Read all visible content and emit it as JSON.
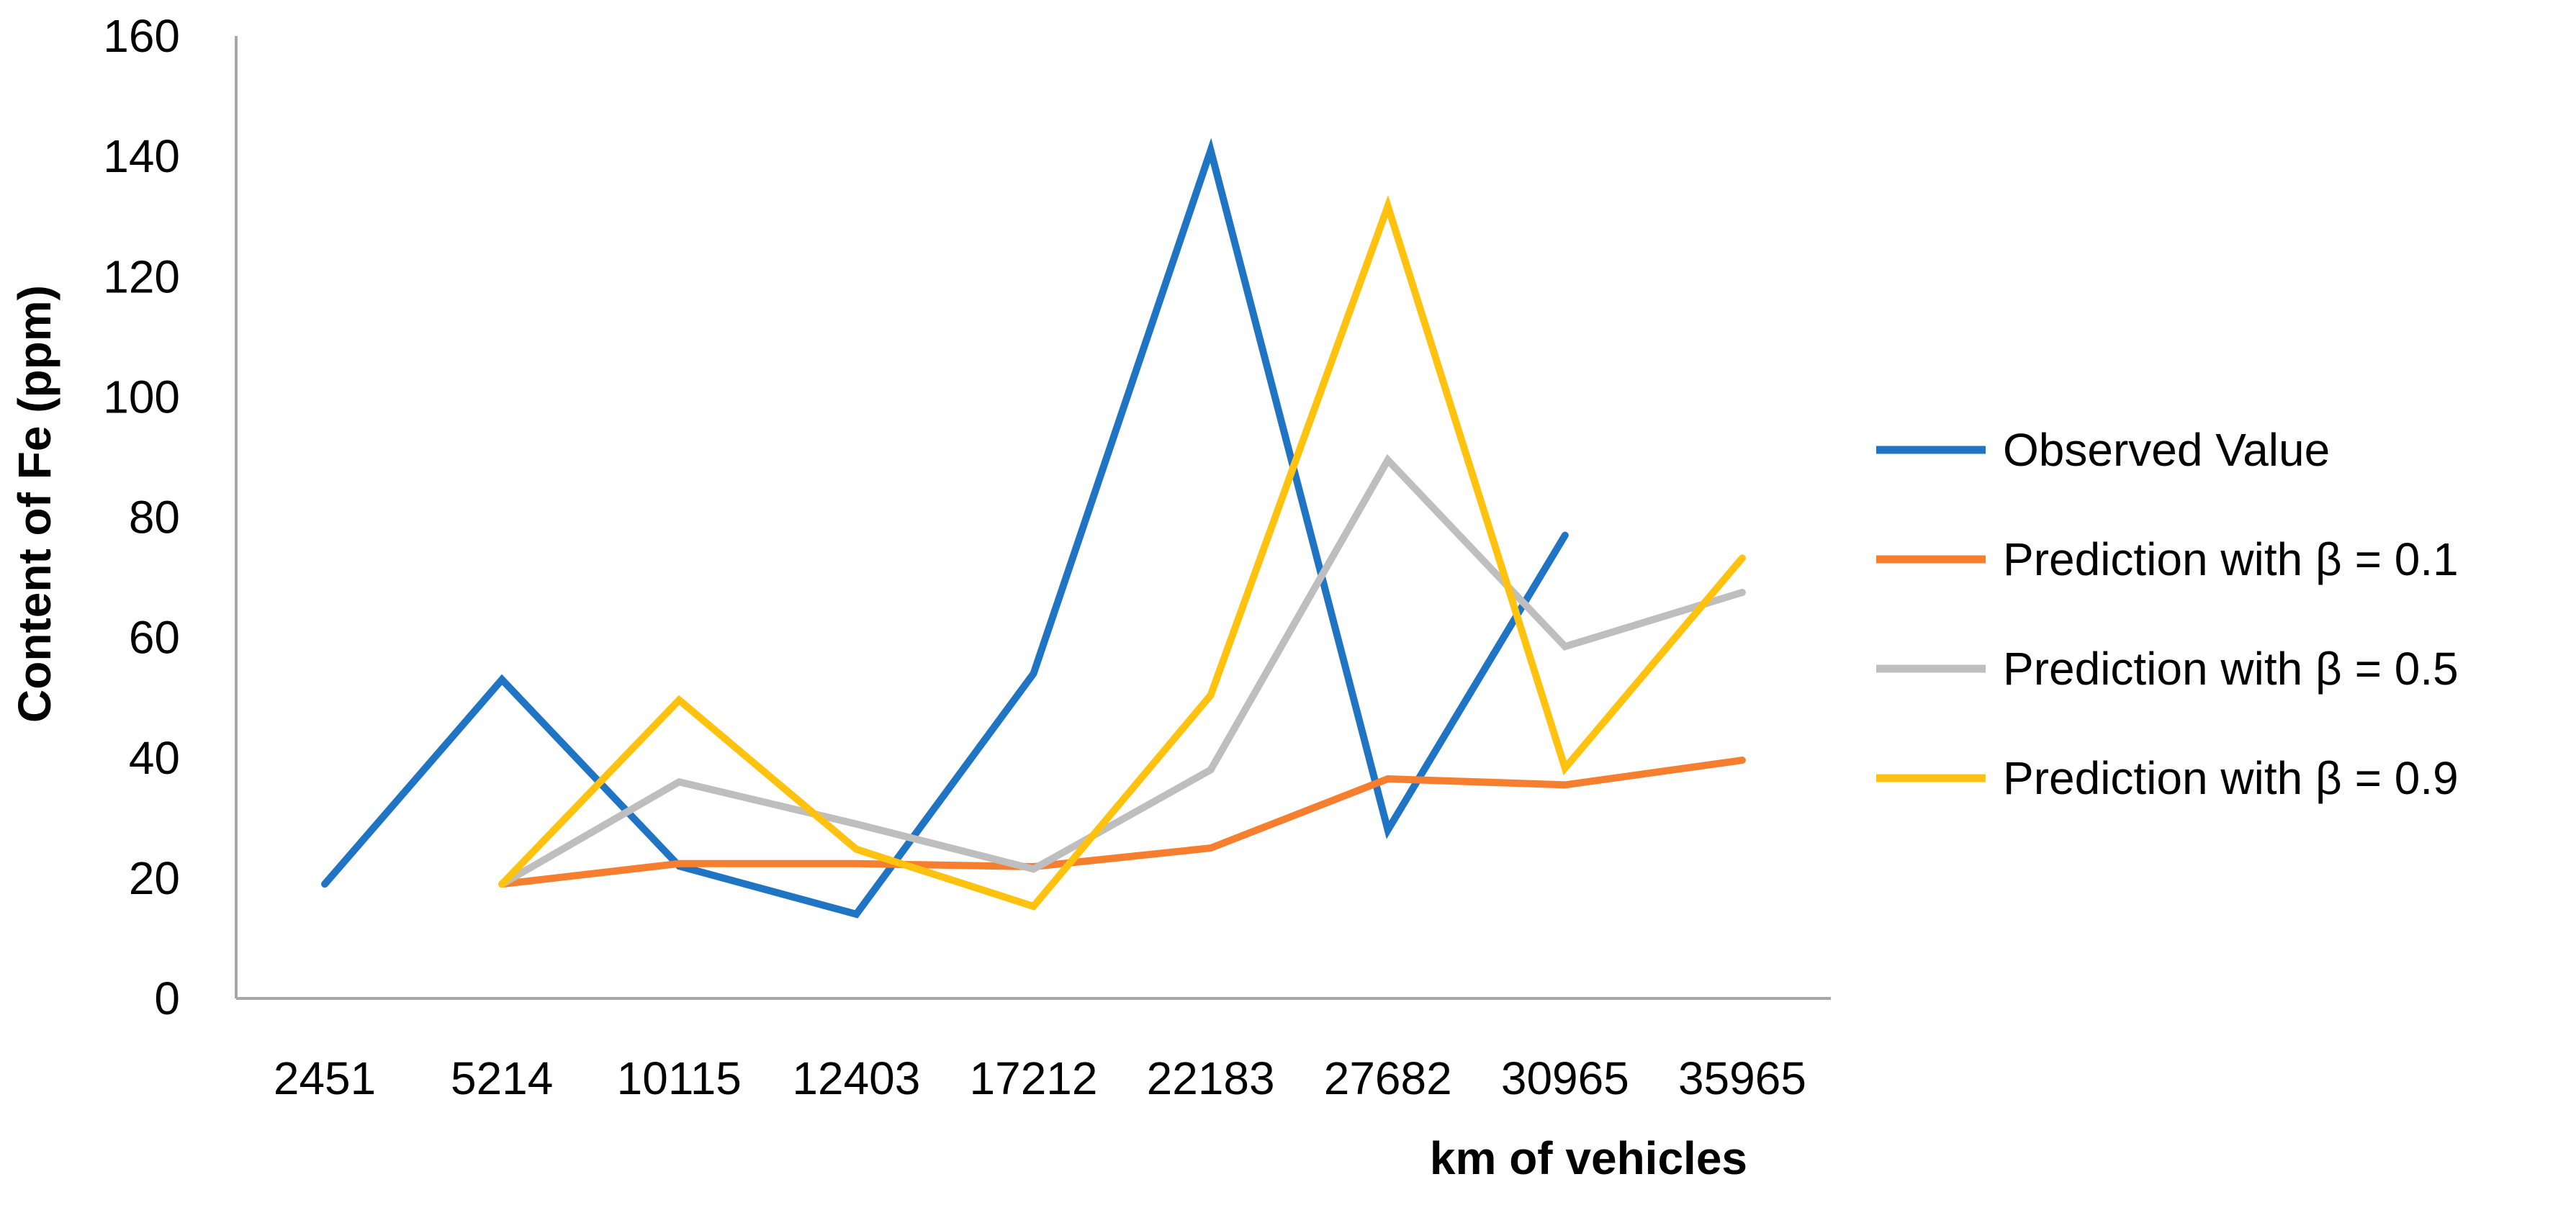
{
  "chart_data": {
    "type": "line",
    "title": "",
    "xlabel": "km of vehicles",
    "ylabel": "Content of Fe (ppm)",
    "categories": [
      "2451",
      "5214",
      "10115",
      "12403",
      "17212",
      "22183",
      "27682",
      "30965",
      "35965"
    ],
    "ylim": [
      0,
      160
    ],
    "yticks": [
      0,
      20,
      40,
      60,
      80,
      100,
      120,
      140,
      160
    ],
    "grid": false,
    "legend_position": "right",
    "series": [
      {
        "name": "Observed Value",
        "color": "#1F74C4",
        "values": [
          19,
          53,
          22,
          14,
          54,
          141,
          28,
          77,
          null
        ]
      },
      {
        "name": "Prediction with β = 0.1",
        "color": "#F57E2F",
        "values": [
          null,
          19,
          22.4,
          22.4,
          21.9,
          25,
          36.5,
          35.5,
          39.6
        ]
      },
      {
        "name": "Prediction with β = 0.5",
        "color": "#BEBEBE",
        "values": [
          null,
          19,
          36,
          29,
          21.5,
          38,
          89.5,
          58.5,
          67.5
        ]
      },
      {
        "name": "Prediction with β = 0.9",
        "color": "#FFC20E",
        "values": [
          null,
          19,
          49.6,
          24.8,
          15.3,
          50.4,
          131.7,
          38.3,
          73.2
        ]
      }
    ]
  }
}
